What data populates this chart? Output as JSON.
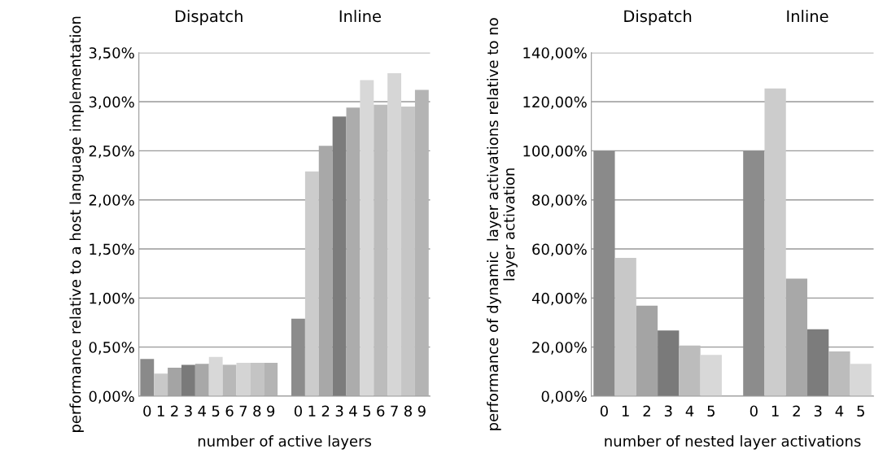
{
  "chart_data": [
    {
      "type": "bar",
      "xlabel": "number of active layers",
      "ylabel": "performance relative to a host language implementation",
      "categories": [
        "0",
        "1",
        "2",
        "3",
        "4",
        "5",
        "6",
        "7",
        "8",
        "9",
        null,
        "0",
        "1",
        "2",
        "3",
        "4",
        "5",
        "6",
        "7",
        "8",
        "9"
      ],
      "values": [
        0.38,
        0.23,
        0.29,
        0.32,
        0.33,
        0.4,
        0.32,
        0.34,
        0.34,
        0.34,
        null,
        0.79,
        2.29,
        2.55,
        2.85,
        2.94,
        3.22,
        2.97,
        3.29,
        2.95,
        3.12
      ],
      "colors": [
        "#8a8a8a",
        "#c8c8c8",
        "#a4a4a4",
        "#7a7a7a",
        "#a8a8a8",
        "#d8d8d8",
        "#b8b8b8",
        "#d4d4d4",
        "#c4c4c4",
        "#b4b4b4",
        "#ffffff",
        "#8c8c8c",
        "#cccccc",
        "#a8a8a8",
        "#7c7c7c",
        "#acacac",
        "#d8d8d8",
        "#bcbcbc",
        "#d6d6d6",
        "#c6c6c6",
        "#b4b4b4"
      ],
      "ylim": [
        0,
        3.5
      ],
      "yticks": [
        {
          "value": 0,
          "label": "0,00%"
        },
        {
          "value": 0.5,
          "label": "0,50%"
        },
        {
          "value": 1,
          "label": "1,00%"
        },
        {
          "value": 1.5,
          "label": "1,50%"
        },
        {
          "value": 2,
          "label": "2,00%"
        },
        {
          "value": 2.5,
          "label": "2,50%"
        },
        {
          "value": 3,
          "label": "3,00%"
        },
        {
          "value": 3.5,
          "label": "3,50%"
        }
      ],
      "grid": "y",
      "legend": false,
      "annotations": [
        "Dispatch",
        "Inline"
      ]
    },
    {
      "type": "bar",
      "xlabel": "number of nested layer activations",
      "ylabel": "performance of dynamic  layer activations relative to no layer activation",
      "categories": [
        "0",
        "1",
        "2",
        "3",
        "4",
        "5",
        null,
        "0",
        "1",
        "2",
        "3",
        "4",
        "5"
      ],
      "values": [
        100,
        56.4,
        36.9,
        26.8,
        20.6,
        16.8,
        null,
        100,
        125.4,
        47.9,
        27.3,
        18.2,
        13.2
      ],
      "colors": [
        "#8a8a8a",
        "#c8c8c8",
        "#a4a4a4",
        "#7a7a7a",
        "#bcbcbc",
        "#d8d8d8",
        "#ffffff",
        "#8c8c8c",
        "#cccccc",
        "#a8a8a8",
        "#7c7c7c",
        "#bcbcbc",
        "#d8d8d8"
      ],
      "ylim": [
        0,
        140
      ],
      "yticks": [
        {
          "value": 0,
          "label": "0,00%"
        },
        {
          "value": 20,
          "label": "20,00%"
        },
        {
          "value": 40,
          "label": "40,00%"
        },
        {
          "value": 60,
          "label": "60,00%"
        },
        {
          "value": 80,
          "label": "80,00%"
        },
        {
          "value": 100,
          "label": "100,00%"
        },
        {
          "value": 120,
          "label": "120,00%"
        },
        {
          "value": 140,
          "label": "140,00%"
        }
      ],
      "grid": "y",
      "legend": false,
      "annotations": [
        "Dispatch",
        "Inline"
      ]
    }
  ]
}
